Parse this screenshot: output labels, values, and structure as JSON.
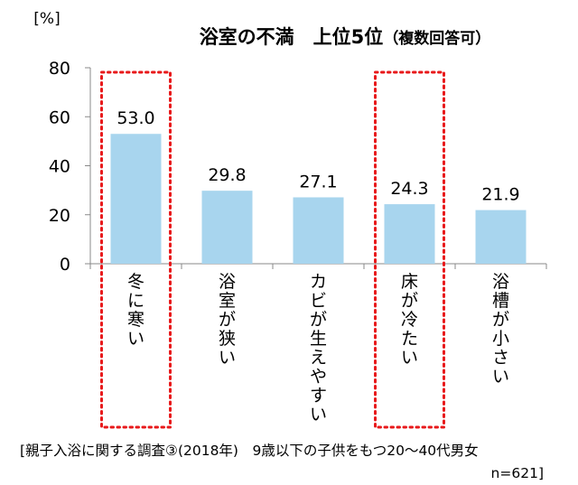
{
  "chart_data": {
    "type": "bar",
    "title": "浴室の不満　上位5位",
    "title_note": "（複数回答可）",
    "unit_label": "[%]",
    "categories": [
      "冬に寒い",
      "浴室が狭い",
      "カビが生えやすい",
      "床が冷たい",
      "浴槽が小さい"
    ],
    "values": [
      53.0,
      29.8,
      27.1,
      24.3,
      21.9
    ],
    "value_labels": [
      "53.0",
      "29.8",
      "27.1",
      "24.3",
      "21.9"
    ],
    "ylim": [
      0,
      80
    ],
    "yticks": [
      0,
      20,
      40,
      60,
      80
    ],
    "highlighted_categories": [
      "冬に寒い",
      "床が冷たい"
    ],
    "grid": false,
    "colors": {
      "bar": "#a8d5ee",
      "highlight": "#e8191b",
      "axis": "#888888"
    }
  },
  "source_note": "[親子入浴に関する調査③(2018年)　9歳以下の子供をもつ20～40代男女",
  "sample_size": "n=621]"
}
